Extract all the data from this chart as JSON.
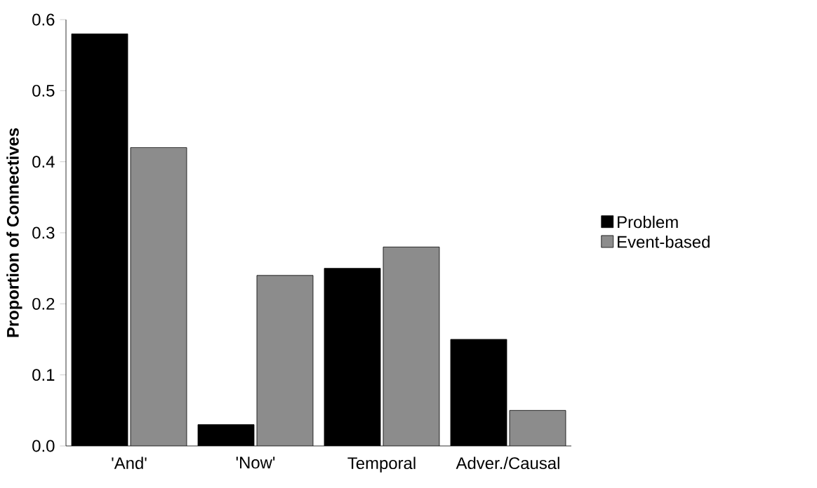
{
  "chart_data": {
    "type": "bar",
    "ylabel": "Proportion of Connectives",
    "categories": [
      "'And'",
      "'Now'",
      "Temporal",
      "Adver./Causal"
    ],
    "series": [
      {
        "name": "Problem",
        "color": "#000000",
        "values": [
          0.58,
          0.03,
          0.25,
          0.15
        ]
      },
      {
        "name": "Event-based",
        "color": "#8c8c8c",
        "values": [
          0.42,
          0.24,
          0.28,
          0.05
        ]
      }
    ],
    "ylim": [
      0,
      0.6
    ],
    "yticks": [
      {
        "value": 0,
        "label": "0.0"
      },
      0.1,
      0.2,
      0.3,
      0.4,
      0.5,
      0.6
    ],
    "legend": "right",
    "grid": false
  }
}
